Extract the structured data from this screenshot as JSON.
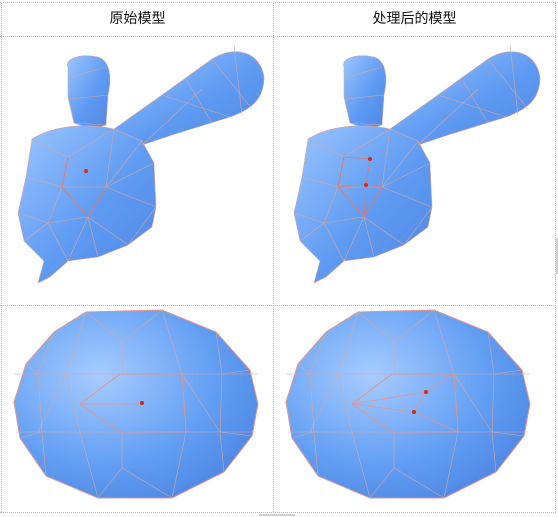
{
  "table": {
    "headers": [
      "原始模型",
      "处理后的模型"
    ]
  },
  "colors": {
    "mesh_fill_light": "#8fbcff",
    "mesh_fill": "#5d97f0",
    "mesh_edge": "#d9a6a0",
    "vertex_marker": "#d8261c",
    "grid_line": "#b5b5b5"
  },
  "figures": [
    {
      "row": "top",
      "column": "original",
      "model": "bunny",
      "markers": 1
    },
    {
      "row": "top",
      "column": "processed",
      "model": "bunny",
      "markers": 2
    },
    {
      "row": "bottom",
      "column": "original",
      "model": "ellipsoid",
      "markers": 1
    },
    {
      "row": "bottom",
      "column": "processed",
      "model": "ellipsoid",
      "markers": 2
    }
  ]
}
